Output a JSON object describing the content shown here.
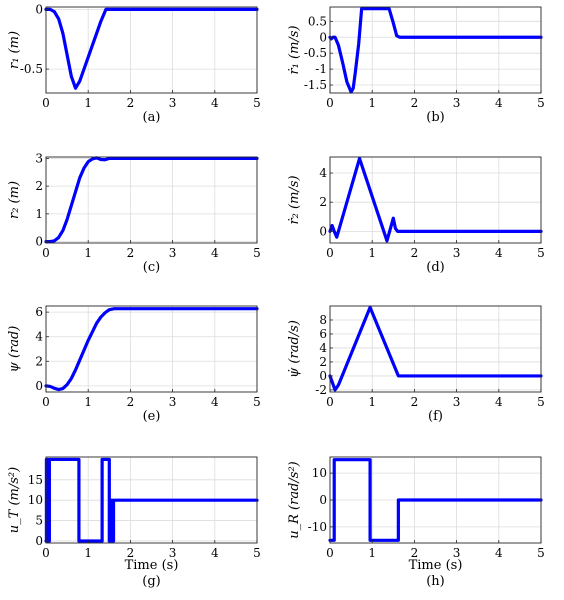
{
  "colors": {
    "line": "#0000ff",
    "frame": "#262626",
    "grid": "#dcdcdc"
  },
  "chart_data": [
    {
      "id": "a",
      "type": "line",
      "caption": "(a)",
      "ylabel": "r₁ (m)",
      "xlabel": "",
      "xlim": [
        0,
        5
      ],
      "ylim": [
        -0.7,
        0.02
      ],
      "xticks": [
        "0",
        "1",
        "2",
        "3",
        "4",
        "5"
      ],
      "yticks": [
        {
          "v": 0,
          "label": "0"
        },
        {
          "v": -0.5,
          "label": "-0.5"
        }
      ],
      "grid": true,
      "series": [
        {
          "x": [
            0,
            0.1,
            0.2,
            0.3,
            0.4,
            0.5,
            0.6,
            0.7,
            0.8,
            0.9,
            1.0,
            1.1,
            1.2,
            1.3,
            1.42,
            1.5,
            2,
            3,
            4,
            5
          ],
          "y": [
            0,
            0,
            -0.02,
            -0.08,
            -0.2,
            -0.38,
            -0.56,
            -0.66,
            -0.6,
            -0.5,
            -0.4,
            -0.3,
            -0.2,
            -0.1,
            0,
            0,
            0,
            0,
            0,
            0
          ]
        }
      ]
    },
    {
      "id": "b",
      "type": "line",
      "caption": "(b)",
      "ylabel": "ṙ₁ (m/s)",
      "xlabel": "",
      "xlim": [
        0,
        5
      ],
      "ylim": [
        -1.75,
        0.95
      ],
      "xticks": [
        "0",
        "1",
        "2",
        "3",
        "4",
        "5"
      ],
      "yticks": [
        {
          "v": 0.5,
          "label": "0.5"
        },
        {
          "v": 0,
          "label": "0"
        },
        {
          "v": -0.5,
          "label": "-0.5"
        },
        {
          "v": -1,
          "label": "-1"
        },
        {
          "v": -1.5,
          "label": "-1.5"
        }
      ],
      "grid": true,
      "series": [
        {
          "x": [
            0,
            0.03,
            0.07,
            0.12,
            0.2,
            0.3,
            0.4,
            0.5,
            0.55,
            0.6,
            0.68,
            0.75,
            0.8,
            1.4,
            1.5,
            1.58,
            1.65,
            2,
            3,
            4,
            5
          ],
          "y": [
            0,
            -0.05,
            0,
            0,
            -0.25,
            -0.8,
            -1.4,
            -1.72,
            -1.6,
            -1.1,
            -0.2,
            0.9,
            0.9,
            0.9,
            0.45,
            0.05,
            0,
            0,
            0,
            0,
            0
          ]
        }
      ]
    },
    {
      "id": "c",
      "type": "line",
      "caption": "(c)",
      "ylabel": "r₂ (m)",
      "xlabel": "",
      "xlim": [
        0,
        5
      ],
      "ylim": [
        -0.05,
        3.05
      ],
      "xticks": [
        "0",
        "1",
        "2",
        "3",
        "4",
        "5"
      ],
      "yticks": [
        {
          "v": 0,
          "label": "0"
        },
        {
          "v": 1,
          "label": "1"
        },
        {
          "v": 2,
          "label": "2"
        },
        {
          "v": 3,
          "label": "3"
        }
      ],
      "grid": true,
      "series": [
        {
          "x": [
            0,
            0.1,
            0.2,
            0.3,
            0.4,
            0.5,
            0.6,
            0.7,
            0.8,
            0.9,
            1.0,
            1.1,
            1.2,
            1.3,
            1.4,
            1.5,
            1.6,
            2,
            3,
            4,
            5
          ],
          "y": [
            0,
            0,
            0.03,
            0.15,
            0.4,
            0.8,
            1.3,
            1.8,
            2.3,
            2.65,
            2.88,
            2.98,
            3.02,
            2.96,
            2.95,
            3.0,
            3.0,
            3.0,
            3.0,
            3.0,
            3.0
          ]
        }
      ]
    },
    {
      "id": "d",
      "type": "line",
      "caption": "(d)",
      "ylabel": "ṙ₂ (m/s)",
      "xlabel": "",
      "xlim": [
        0,
        5
      ],
      "ylim": [
        -0.8,
        5.1
      ],
      "xticks": [
        "0",
        "1",
        "2",
        "3",
        "4",
        "5"
      ],
      "yticks": [
        {
          "v": 4,
          "label": "4"
        },
        {
          "v": 2,
          "label": "2"
        },
        {
          "v": 0,
          "label": "0"
        }
      ],
      "grid": true,
      "series": [
        {
          "x": [
            0,
            0.05,
            0.1,
            0.16,
            0.7,
            1.35,
            1.5,
            1.55,
            1.6,
            2,
            3,
            4,
            5
          ],
          "y": [
            0,
            0.4,
            0,
            -0.4,
            5.0,
            -0.65,
            0.9,
            0.2,
            0,
            0,
            0,
            0,
            0
          ]
        }
      ]
    },
    {
      "id": "e",
      "type": "line",
      "caption": "(e)",
      "ylabel": "ψ (rad)",
      "xlabel": "",
      "xlim": [
        0,
        5
      ],
      "ylim": [
        -0.5,
        6.5
      ],
      "xticks": [
        "0",
        "1",
        "2",
        "3",
        "4",
        "5"
      ],
      "yticks": [
        {
          "v": 0,
          "label": "0"
        },
        {
          "v": 2,
          "label": "2"
        },
        {
          "v": 4,
          "label": "4"
        },
        {
          "v": 6,
          "label": "6"
        }
      ],
      "grid": true,
      "series": [
        {
          "x": [
            0,
            0.1,
            0.2,
            0.3,
            0.4,
            0.5,
            0.6,
            0.7,
            0.8,
            0.9,
            1.0,
            1.1,
            1.2,
            1.3,
            1.4,
            1.5,
            1.62,
            2,
            3,
            4,
            5
          ],
          "y": [
            0,
            -0.05,
            -0.2,
            -0.3,
            -0.22,
            0.1,
            0.6,
            1.3,
            2.1,
            2.9,
            3.7,
            4.4,
            5.1,
            5.6,
            5.95,
            6.2,
            6.28,
            6.28,
            6.28,
            6.28,
            6.28
          ]
        }
      ]
    },
    {
      "id": "f",
      "type": "line",
      "caption": "(f)",
      "ylabel": "ψ̇ (rad/s)",
      "xlabel": "",
      "xlim": [
        0,
        5
      ],
      "ylim": [
        -2.3,
        10
      ],
      "xticks": [
        "0",
        "1",
        "2",
        "3",
        "4",
        "5"
      ],
      "yticks": [
        {
          "v": 8,
          "label": "8"
        },
        {
          "v": 6,
          "label": "6"
        },
        {
          "v": 4,
          "label": "4"
        },
        {
          "v": 2,
          "label": "2"
        },
        {
          "v": 0,
          "label": "0"
        },
        {
          "v": -2,
          "label": "-2"
        }
      ],
      "grid": true,
      "series": [
        {
          "x": [
            0,
            0.12,
            0.2,
            0.95,
            1.62,
            2,
            3,
            4,
            5
          ],
          "y": [
            0,
            -2,
            -1.3,
            9.8,
            0,
            0,
            0,
            0,
            0
          ]
        }
      ]
    },
    {
      "id": "g",
      "type": "line",
      "caption": "(g)",
      "ylabel": "u_T (m/s²)",
      "xlabel": "Time (s)",
      "xlim": [
        0,
        5
      ],
      "ylim": [
        -0.5,
        20.6
      ],
      "xticks": [
        "0",
        "1",
        "2",
        "3",
        "4",
        "5"
      ],
      "yticks": [
        {
          "v": 15,
          "label": "15"
        },
        {
          "v": 10,
          "label": "10"
        },
        {
          "v": 5,
          "label": "5"
        },
        {
          "v": 0,
          "label": "0"
        }
      ],
      "grid": true,
      "series": [
        {
          "x": [
            0,
            0.01,
            0.01,
            0.05,
            0.05,
            0.08,
            0.08,
            0.78,
            0.78,
            1.33,
            1.33,
            1.5,
            1.5,
            1.54,
            1.54,
            1.57,
            1.57,
            1.6,
            1.6,
            5
          ],
          "y": [
            0,
            0,
            20,
            20,
            0,
            0,
            20,
            20,
            0,
            0,
            20,
            20,
            0,
            0,
            10,
            10,
            0,
            0,
            10,
            10
          ]
        }
      ]
    },
    {
      "id": "h",
      "type": "line",
      "caption": "(h)",
      "ylabel": "u_R (rad/s²)",
      "xlabel": "Time (s)",
      "xlim": [
        0,
        5
      ],
      "ylim": [
        -16,
        16
      ],
      "xticks": [
        "0",
        "1",
        "2",
        "3",
        "4",
        "5"
      ],
      "yticks": [
        {
          "v": 10,
          "label": "10"
        },
        {
          "v": 0,
          "label": "0"
        },
        {
          "v": -10,
          "label": "-10"
        }
      ],
      "grid": true,
      "series": [
        {
          "x": [
            0,
            0.1,
            0.1,
            0.95,
            0.95,
            1.62,
            1.62,
            5
          ],
          "y": [
            -15,
            -15,
            15,
            15,
            -15,
            -15,
            0,
            0
          ]
        }
      ]
    }
  ]
}
